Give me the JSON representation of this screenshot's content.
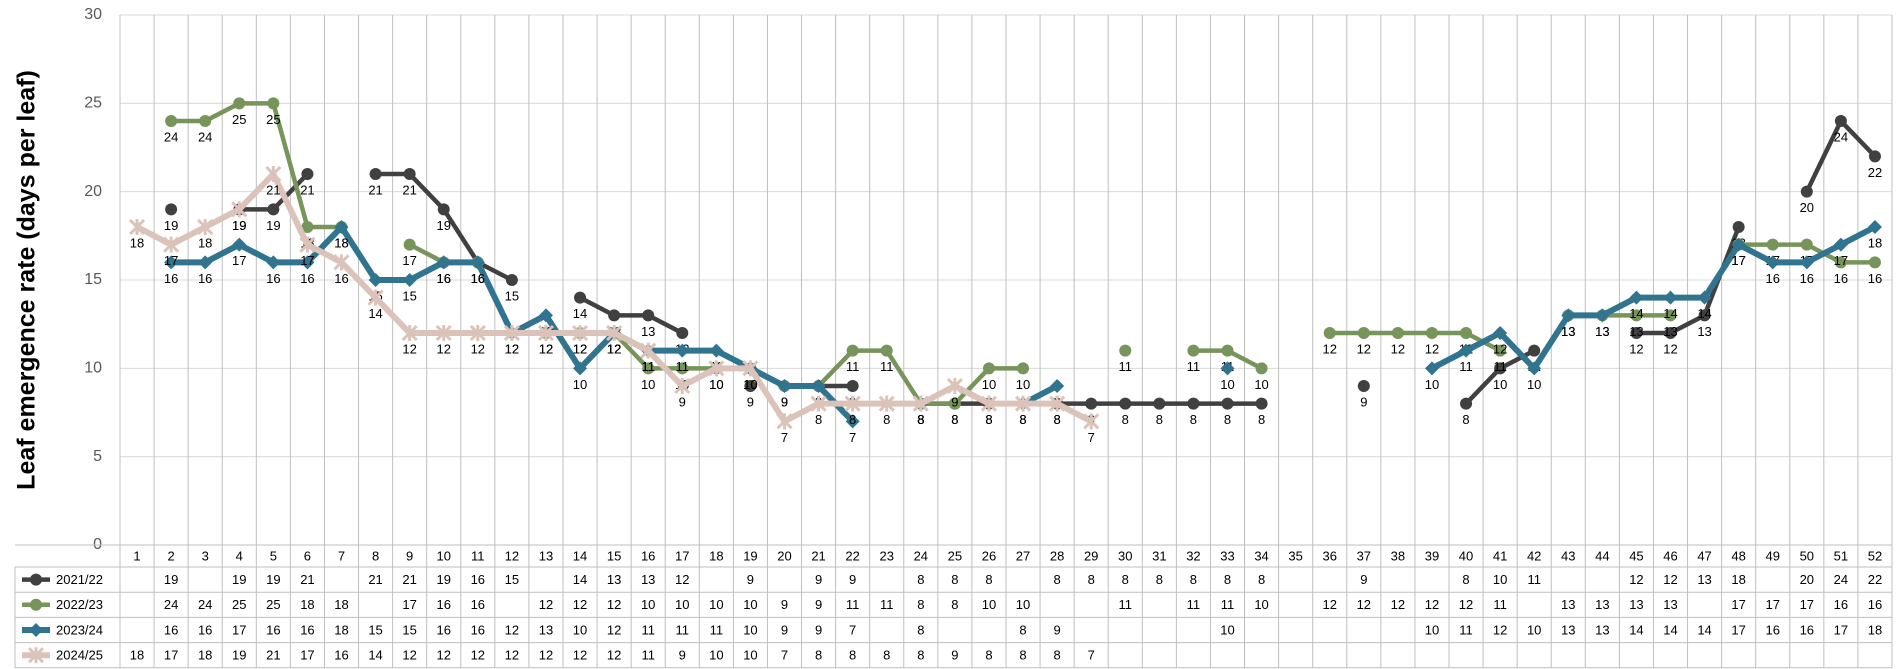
{
  "chart_data": {
    "type": "line",
    "y_label": "Leaf emergence rate (days per leaf)",
    "categories": [
      "1",
      "2",
      "3",
      "4",
      "5",
      "6",
      "7",
      "8",
      "9",
      "10",
      "11",
      "12",
      "13",
      "14",
      "15",
      "16",
      "17",
      "18",
      "19",
      "20",
      "21",
      "22",
      "23",
      "24",
      "25",
      "26",
      "27",
      "28",
      "29",
      "30",
      "31",
      "32",
      "33",
      "34",
      "35",
      "36",
      "37",
      "38",
      "39",
      "40",
      "41",
      "42",
      "43",
      "44",
      "45",
      "46",
      "47",
      "48",
      "49",
      "50",
      "51",
      "52"
    ],
    "ylim": [
      0,
      30
    ],
    "yticks": [
      0,
      5,
      10,
      15,
      20,
      25,
      30
    ],
    "grid": true,
    "series": [
      {
        "name": "2021/22",
        "color": "#404040",
        "marker": "circle",
        "values": [
          null,
          19,
          null,
          19,
          19,
          21,
          null,
          21,
          21,
          19,
          16,
          15,
          null,
          14,
          13,
          13,
          12,
          null,
          9,
          null,
          9,
          9,
          null,
          8,
          8,
          8,
          null,
          8,
          8,
          8,
          8,
          8,
          8,
          8,
          null,
          null,
          9,
          null,
          null,
          8,
          10,
          11,
          null,
          null,
          12,
          12,
          13,
          18,
          null,
          20,
          24,
          22
        ]
      },
      {
        "name": "2022/23",
        "color": "#77945a",
        "marker": "circle",
        "values": [
          null,
          24,
          24,
          25,
          25,
          18,
          18,
          null,
          17,
          16,
          16,
          null,
          12,
          12,
          12,
          10,
          10,
          10,
          10,
          9,
          9,
          11,
          11,
          8,
          8,
          10,
          10,
          null,
          null,
          11,
          null,
          11,
          11,
          10,
          null,
          12,
          12,
          12,
          12,
          12,
          11,
          null,
          13,
          13,
          13,
          13,
          null,
          17,
          17,
          17,
          16,
          16
        ]
      },
      {
        "name": "2023/24",
        "color": "#31748f",
        "marker": "diamond",
        "values": [
          null,
          16,
          16,
          17,
          16,
          16,
          18,
          15,
          15,
          16,
          16,
          12,
          13,
          10,
          12,
          11,
          11,
          11,
          10,
          9,
          9,
          7,
          null,
          8,
          null,
          null,
          8,
          9,
          null,
          null,
          null,
          null,
          10,
          null,
          null,
          null,
          null,
          null,
          10,
          11,
          12,
          10,
          13,
          13,
          14,
          14,
          14,
          17,
          16,
          16,
          17,
          18
        ]
      },
      {
        "name": "2024/25",
        "color": "#dcc3ba",
        "marker": "star",
        "values": [
          18,
          17,
          18,
          19,
          21,
          17,
          16,
          14,
          12,
          12,
          12,
          12,
          12,
          12,
          12,
          11,
          9,
          10,
          10,
          7,
          8,
          8,
          8,
          8,
          9,
          8,
          8,
          8,
          7,
          null,
          null,
          null,
          null,
          null,
          null,
          null,
          null,
          null,
          null,
          null,
          null,
          null,
          null,
          null,
          null,
          null,
          null,
          null,
          null,
          null,
          null,
          null
        ]
      }
    ]
  }
}
